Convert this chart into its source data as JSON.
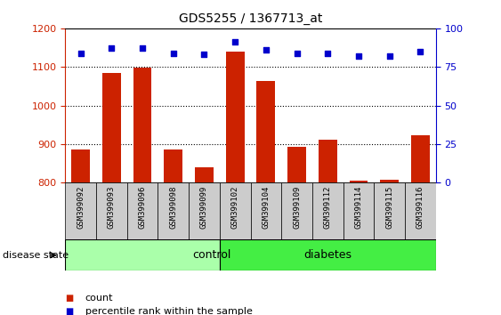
{
  "title": "GDS5255 / 1367713_at",
  "samples": [
    "GSM399092",
    "GSM399093",
    "GSM399096",
    "GSM399098",
    "GSM399099",
    "GSM399102",
    "GSM399104",
    "GSM399109",
    "GSM399112",
    "GSM399114",
    "GSM399115",
    "GSM399116"
  ],
  "counts": [
    887,
    1085,
    1098,
    887,
    840,
    1140,
    1063,
    893,
    912,
    805,
    808,
    922
  ],
  "percentiles": [
    84,
    87,
    87,
    84,
    83,
    91,
    86,
    84,
    84,
    82,
    82,
    85
  ],
  "ylim_left": [
    800,
    1200
  ],
  "ylim_right": [
    0,
    100
  ],
  "yticks_left": [
    800,
    900,
    1000,
    1100,
    1200
  ],
  "yticks_right": [
    0,
    25,
    50,
    75,
    100
  ],
  "bar_color": "#cc2200",
  "dot_color": "#0000cc",
  "n_control": 5,
  "n_diabetes": 7,
  "control_label": "control",
  "diabetes_label": "diabetes",
  "disease_state_label": "disease state",
  "legend_count": "count",
  "legend_percentile": "percentile rank within the sample",
  "control_color": "#aaffaa",
  "diabetes_color": "#44ee44",
  "tick_bg_color": "#cccccc",
  "bar_bottom": 800,
  "figsize": [
    5.63,
    3.54
  ],
  "dpi": 100
}
